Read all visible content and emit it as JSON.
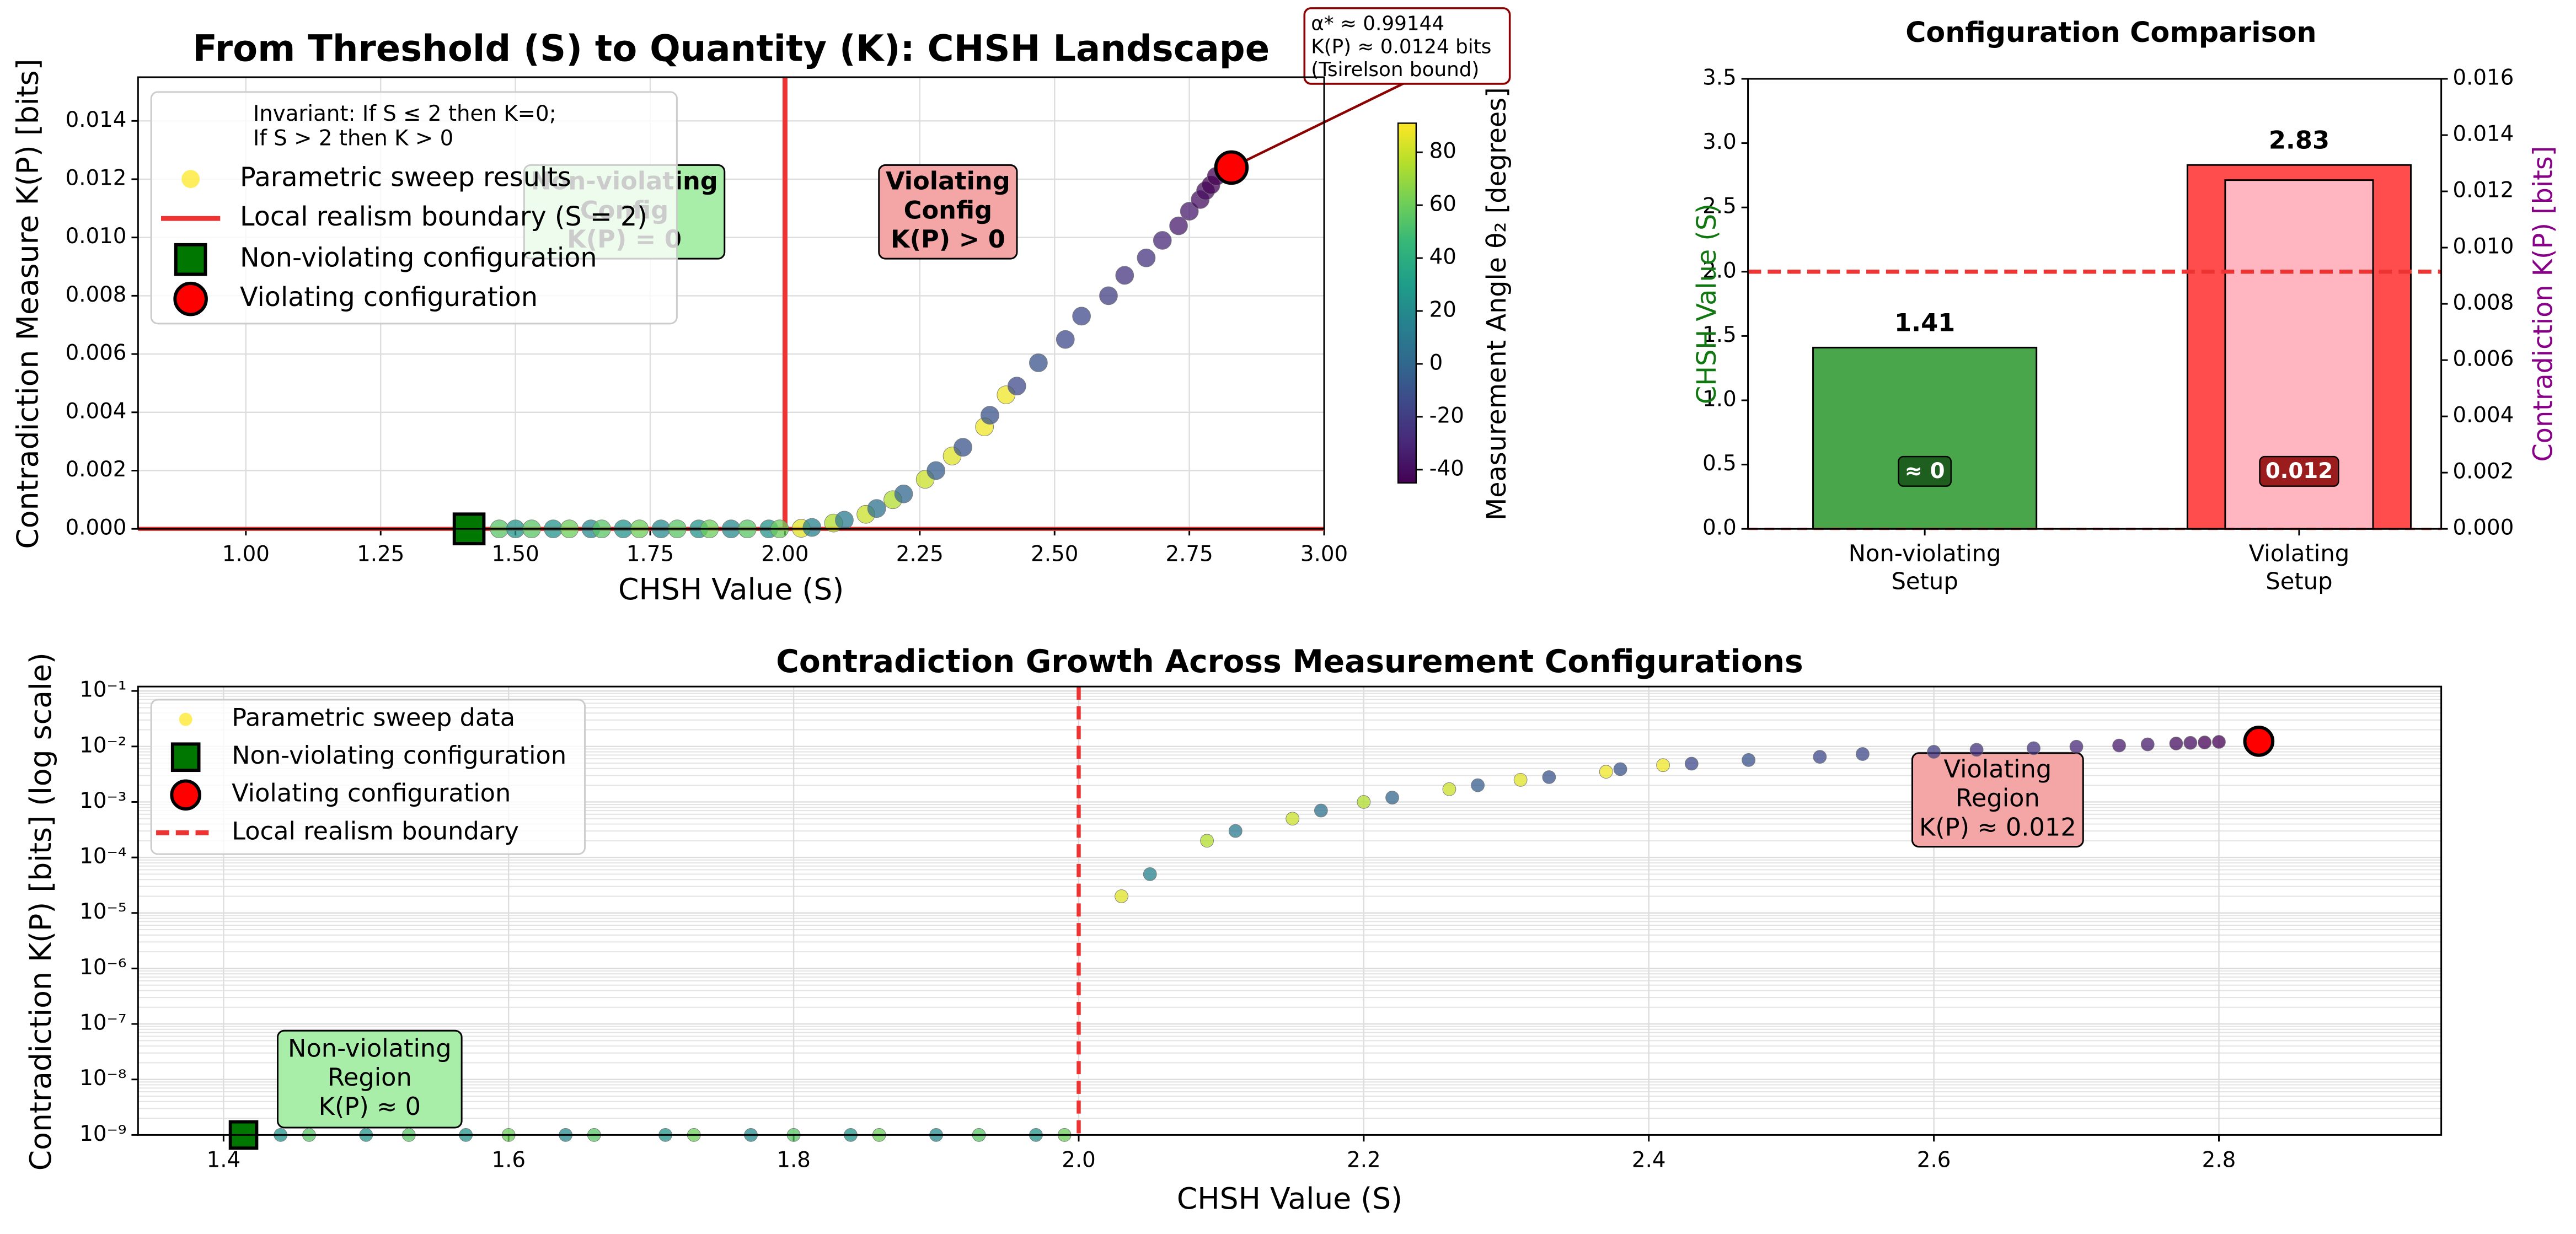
{
  "chart_data": [
    {
      "type": "scatter",
      "title": "From Threshold (S) to Quantity (K): CHSH Landscape",
      "x_label": "CHSH Value (S)",
      "y_label": "Contradiction Measure K(P) [bits]",
      "xlim": [
        0.8,
        3.0
      ],
      "xticks": [
        {
          "value": 1.0,
          "label": "1.00"
        },
        {
          "value": 1.25,
          "label": "1.25"
        },
        {
          "value": 1.5,
          "label": "1.50"
        },
        {
          "value": 1.75,
          "label": "1.75"
        },
        {
          "value": 2.0,
          "label": "2.00"
        },
        {
          "value": 2.25,
          "label": "2.25"
        },
        {
          "value": 2.5,
          "label": "2.50"
        },
        {
          "value": 2.75,
          "label": "2.75"
        },
        {
          "value": 3.0,
          "label": "3.00"
        }
      ],
      "ylim": [
        0,
        0.0155
      ],
      "yticks": [
        {
          "value": 0,
          "label": "0.000"
        },
        {
          "value": 0.002,
          "label": "0.002"
        },
        {
          "value": 0.004,
          "label": "0.004"
        },
        {
          "value": 0.006,
          "label": "0.006"
        },
        {
          "value": 0.008,
          "label": "0.008"
        },
        {
          "value": 0.01,
          "label": "0.010"
        },
        {
          "value": 0.012,
          "label": "0.012"
        },
        {
          "value": 0.014,
          "label": "0.014"
        }
      ],
      "grid": true,
      "log_y": false,
      "zero_line": true,
      "series": [
        {
          "name": "Parametric sweep results",
          "x": [
            1.47,
            1.5,
            1.53,
            1.57,
            1.6,
            1.64,
            1.66,
            1.7,
            1.73,
            1.77,
            1.8,
            1.84,
            1.86,
            1.9,
            1.93,
            1.97,
            1.99,
            2.03,
            2.05,
            2.09,
            2.11,
            2.15,
            2.17,
            2.2,
            2.22,
            2.26,
            2.28,
            2.31,
            2.33,
            2.37,
            2.38,
            2.41,
            2.43,
            2.47,
            2.52,
            2.55,
            2.6,
            2.63,
            2.67,
            2.7,
            2.73,
            2.75,
            2.77,
            2.78,
            2.79,
            2.8
          ],
          "values": [
            0,
            0,
            0,
            0,
            0,
            0,
            0,
            0,
            0,
            0,
            0,
            0,
            0,
            0,
            0,
            0,
            0,
            2e-05,
            5e-05,
            0.0002,
            0.0003,
            0.0005,
            0.0007,
            0.001,
            0.0012,
            0.0017,
            0.002,
            0.0025,
            0.0028,
            0.0035,
            0.0039,
            0.0046,
            0.0049,
            0.0057,
            0.0065,
            0.0073,
            0.008,
            0.0087,
            0.0093,
            0.0099,
            0.0104,
            0.0109,
            0.0113,
            0.0116,
            0.0118,
            0.0121
          ],
          "color_values": [
            55,
            25,
            55,
            25,
            60,
            20,
            55,
            25,
            60,
            20,
            55,
            25,
            60,
            20,
            55,
            25,
            60,
            85,
            15,
            75,
            10,
            80,
            5,
            75,
            0,
            80,
            -5,
            85,
            -10,
            88,
            -10,
            88,
            -15,
            -10,
            -15,
            -15,
            -20,
            -25,
            -25,
            -30,
            -35,
            -35,
            -40,
            -40,
            -45,
            -45
          ],
          "colormap": "viridis"
        }
      ],
      "boundary": {
        "name": "Local realism boundary (S = 2)",
        "x": 2.0,
        "style": "solid",
        "color": "#ee3333"
      },
      "markers": [
        {
          "name": "Non-violating configuration",
          "x": 1.414,
          "value": 0,
          "shape": "square",
          "color": "#007700"
        },
        {
          "name": "Violating configuration",
          "x": 2.828,
          "value": 0.0124,
          "shape": "circle",
          "color": "#ff0000"
        }
      ],
      "legend": "upper left",
      "legend_title": [
        "Invariant: If S ≤ 2 then K=0;",
        "If S > 2 then K > 0"
      ],
      "annotations": [
        {
          "lines": [
            "Non-violating",
            "Config",
            "K(P) = 0"
          ],
          "color": "#a8eea8"
        },
        {
          "lines": [
            "Violating",
            "Config",
            "K(P) > 0"
          ],
          "color": "#f4a6a6"
        }
      ],
      "callout": [
        "α* ≈ 0.99144",
        "K(P) ≈ 0.0124 bits",
        "(Tsirelson bound)"
      ],
      "colorbar": {
        "label": "Measurement Angle θ₂ [degrees]",
        "lim": [
          -45,
          91
        ],
        "ticks": [
          -40,
          -20,
          0,
          20,
          40,
          60,
          80
        ]
      }
    },
    {
      "type": "bar",
      "title": "Configuration Comparison",
      "categories": [
        [
          "Non-violating",
          "Setup"
        ],
        [
          "Violating",
          "Setup"
        ]
      ],
      "y_label": "CHSH Value (S)",
      "y_label_color": "#117711",
      "y2_label": "Contradiction K(P) [bits]",
      "y2_label_color": "#880088",
      "ylim": [
        0,
        3.5
      ],
      "yticks": [
        {
          "value": 0,
          "label": "0.0"
        },
        0.5,
        {
          "value": 1,
          "label": "1.0"
        },
        1.5,
        {
          "value": 2,
          "label": "2.0"
        },
        2.5,
        {
          "value": 3,
          "label": "3.0"
        },
        3.5
      ],
      "y2lim": [
        0,
        0.016
      ],
      "y2ticks": [
        {
          "value": 0,
          "label": "0.000"
        },
        {
          "value": 0.002,
          "label": "0.002"
        },
        {
          "value": 0.004,
          "label": "0.004"
        },
        {
          "value": 0.006,
          "label": "0.006"
        },
        {
          "value": 0.008,
          "label": "0.008"
        },
        {
          "value": 0.01,
          "label": "0.010"
        },
        {
          "value": 0.012,
          "label": "0.012"
        },
        {
          "value": 0.014,
          "label": "0.014"
        },
        {
          "value": 0.016,
          "label": "0.016"
        }
      ],
      "series": [
        {
          "values": [
            1.41,
            2.83
          ],
          "colors": [
            "#4aa64a",
            "#ff4d4d"
          ]
        },
        {
          "axis": "y2",
          "values": [
            0,
            0.0124
          ],
          "value_labels": [
            "≈ 0",
            "0.012"
          ],
          "colors": [
            "#ffb6c1",
            "#ffb6c1"
          ],
          "label_colors": [
            "#1e5e1e",
            "#9b1c1c"
          ]
        }
      ],
      "threshold": 2,
      "threshold_color": "#ee3333"
    },
    {
      "type": "scatter",
      "title": "Contradiction Growth Across Measurement Configurations",
      "x_label": "CHSH Value (S)",
      "y_label": "Contradiction K(P) [bits] (log scale)",
      "xlim": [
        1.34,
        2.956
      ],
      "xticks": [
        1.4,
        1.6,
        1.8,
        {
          "value": 2.0,
          "label": "2.0"
        },
        2.2,
        2.4,
        2.6,
        2.8
      ],
      "ylim": [
        1e-09,
        0.12
      ],
      "yticks": [
        {
          "value": 1e-09,
          "label": "10⁻⁹"
        },
        {
          "value": 1e-08,
          "label": "10⁻⁸"
        },
        {
          "value": 1e-07,
          "label": "10⁻⁷"
        },
        {
          "value": 1e-06,
          "label": "10⁻⁶"
        },
        {
          "value": 1e-05,
          "label": "10⁻⁵"
        },
        {
          "value": 0.0001,
          "label": "10⁻⁴"
        },
        {
          "value": 0.001,
          "label": "10⁻³"
        },
        {
          "value": 0.01,
          "label": "10⁻²"
        },
        {
          "value": 0.1,
          "label": "10⁻¹"
        }
      ],
      "grid": true,
      "log_y": true,
      "series": [
        {
          "name": "Parametric sweep data",
          "x": [
            1.44,
            1.46,
            1.5,
            1.53,
            1.57,
            1.6,
            1.64,
            1.66,
            1.71,
            1.73,
            1.77,
            1.8,
            1.84,
            1.86,
            1.9,
            1.93,
            1.97,
            1.99,
            2.03,
            2.05,
            2.09,
            2.11,
            2.15,
            2.17,
            2.2,
            2.22,
            2.26,
            2.28,
            2.31,
            2.33,
            2.37,
            2.38,
            2.41,
            2.43,
            2.47,
            2.52,
            2.55,
            2.6,
            2.63,
            2.67,
            2.7,
            2.73,
            2.75,
            2.77,
            2.78,
            2.79,
            2.8
          ],
          "values": [
            1e-09,
            1e-09,
            1e-09,
            1e-09,
            1e-09,
            1e-09,
            1e-09,
            1e-09,
            1e-09,
            1e-09,
            1e-09,
            1e-09,
            1e-09,
            1e-09,
            1e-09,
            1e-09,
            1e-09,
            1e-09,
            2e-05,
            5e-05,
            0.0002,
            0.0003,
            0.0005,
            0.0007,
            0.001,
            0.0012,
            0.0017,
            0.002,
            0.0025,
            0.0028,
            0.0035,
            0.0039,
            0.0046,
            0.0049,
            0.0057,
            0.0065,
            0.0073,
            0.008,
            0.0087,
            0.0093,
            0.0099,
            0.0104,
            0.0109,
            0.0113,
            0.0116,
            0.0118,
            0.0121
          ],
          "color_values": [
            25,
            55,
            25,
            55,
            25,
            60,
            20,
            55,
            25,
            60,
            20,
            55,
            25,
            60,
            20,
            55,
            25,
            60,
            85,
            15,
            75,
            10,
            80,
            5,
            75,
            0,
            80,
            -5,
            85,
            -10,
            88,
            -10,
            88,
            -15,
            -10,
            -15,
            -15,
            -20,
            -25,
            -25,
            -30,
            -35,
            -35,
            -40,
            -40,
            -45,
            -45
          ],
          "colormap": "viridis",
          "clim": [
            -45,
            91
          ]
        }
      ],
      "boundary": {
        "name": "Local realism boundary",
        "x": 2.0,
        "style": "dashed",
        "color": "#ee3333"
      },
      "markers": [
        {
          "name": "Non-violating configuration",
          "x": 1.414,
          "value": 1e-09,
          "shape": "square",
          "color": "#007700"
        },
        {
          "name": "Violating configuration",
          "x": 2.828,
          "value": 0.0124,
          "shape": "circle",
          "color": "#ff0000"
        }
      ],
      "legend": "upper left",
      "annotations": [
        {
          "lines": [
            "Non-violating",
            "Region",
            "K(P) ≈ 0"
          ],
          "color": "#a8eea8"
        },
        {
          "lines": [
            "Violating",
            "Region",
            "K(P) ≈ 0.012"
          ],
          "color": "#f4a6a6"
        }
      ]
    }
  ]
}
